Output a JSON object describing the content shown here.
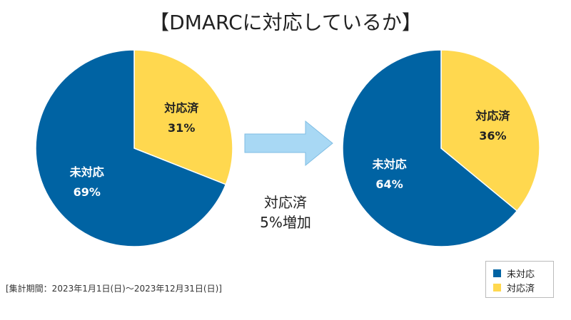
{
  "title": "【DMARCに対応しているか】",
  "chart_data": [
    {
      "type": "pie",
      "slices": [
        {
          "label": "未対応",
          "value": 69,
          "value_label": "69%",
          "color": "#0063a3",
          "text_color": "#ffffff"
        },
        {
          "label": "対応済",
          "value": 31,
          "value_label": "31%",
          "color": "#ffd84f",
          "text_color": "#222222"
        }
      ]
    },
    {
      "type": "pie",
      "slices": [
        {
          "label": "未対応",
          "value": 64,
          "value_label": "64%",
          "color": "#0063a3",
          "text_color": "#ffffff"
        },
        {
          "label": "対応済",
          "value": 36,
          "value_label": "36%",
          "color": "#ffd84f",
          "text_color": "#222222"
        }
      ]
    }
  ],
  "annotation": {
    "line1": "対応済",
    "line2": "5%増加"
  },
  "arrow_icon": "right-arrow-icon",
  "arrow_color": "#a8d8f4",
  "footnote": "[集計期間：2023年1月1日(日)～2023年12月31日(日)]",
  "legend": [
    {
      "label": "未対応",
      "color": "#0063a3"
    },
    {
      "label": "対応済",
      "color": "#ffd84f"
    }
  ]
}
